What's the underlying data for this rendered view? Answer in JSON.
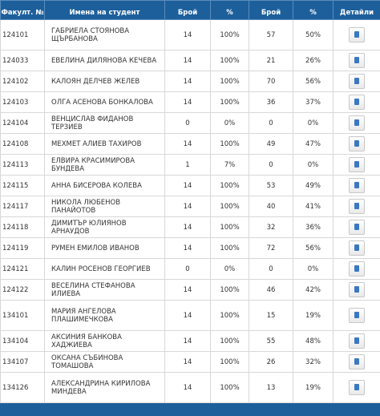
{
  "table": {
    "headers": [
      "Факулт. №",
      "Имена на студент",
      "Брой",
      "%",
      "Брой",
      "%",
      "Детайли"
    ],
    "rows": [
      [
        "124101",
        "ГАБРИЕЛА СТОЯНОВА ЩЪРБАНОВА",
        "14",
        "100%",
        "57",
        "50%"
      ],
      [
        "124033",
        "ЕВЕЛИНА ДИЛЯНОВА КЕЧЕВА",
        "14",
        "100%",
        "21",
        "26%"
      ],
      [
        "124102",
        "КАЛОЯН ДЕЛЧЕВ ЖЕЛЕВ",
        "14",
        "100%",
        "70",
        "56%"
      ],
      [
        "124103",
        "ОЛГА АСЕНОВА БОНКАЛОВА",
        "14",
        "100%",
        "36",
        "37%"
      ],
      [
        "124104",
        "ВЕНЦИСЛАВ ФИДАНОВ ТЕРЗИЕВ",
        "0",
        "0%",
        "0",
        "0%"
      ],
      [
        "124108",
        "МЕХМЕТ АЛИЕВ ТАХИРОВ",
        "14",
        "100%",
        "49",
        "47%"
      ],
      [
        "124113",
        "ЕЛВИРА КРАСИМИРОВА БУНДЕВА",
        "1",
        "7%",
        "0",
        "0%"
      ],
      [
        "124115",
        "АННА БИСЕРОВА КОЛЕВА",
        "14",
        "100%",
        "53",
        "49%"
      ],
      [
        "124117",
        "НИКОЛА ЛЮБЕНОВ ПАНАЙОТОВ",
        "14",
        "100%",
        "40",
        "41%"
      ],
      [
        "124118",
        "ДИМИТЪР ЮЛИЯНОВ АРНАУДОВ",
        "14",
        "100%",
        "32",
        "36%"
      ],
      [
        "124119",
        "РУМЕН ЕМИЛОВ ИВАНОВ",
        "14",
        "100%",
        "72",
        "56%"
      ],
      [
        "124121",
        "КАЛИН РОСЕНОВ ГЕОРГИЕВ",
        "0",
        "0%",
        "0",
        "0%"
      ],
      [
        "124122",
        "ВЕСЕЛИНА СТЕФАНОВА ИЛИЕВА",
        "14",
        "100%",
        "46",
        "42%"
      ],
      [
        "134101",
        "МАРИЯ АНГЕЛОВА ПЛАШИМЕЧКОВА",
        "14",
        "100%",
        "15",
        "19%"
      ],
      [
        "134104",
        "АКСИНИЯ БАНКОВА ХАДЖИЕВА",
        "14",
        "100%",
        "55",
        "48%"
      ],
      [
        "134107",
        "ОКСАНА СЪБИНОВА ТОМАШОВА",
        "14",
        "100%",
        "26",
        "32%"
      ],
      [
        "134126",
        "АЛЕКСАНДРИНА КИРИЛОВА МИНДЕВА",
        "14",
        "100%",
        "13",
        "19%"
      ]
    ]
  }
}
